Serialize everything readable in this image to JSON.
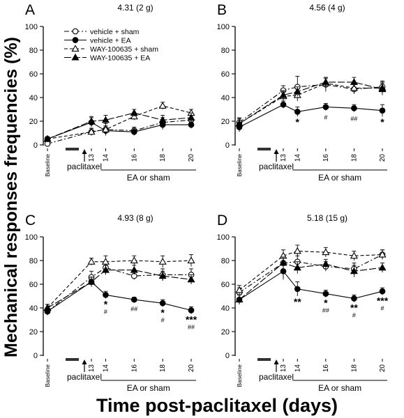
{
  "figure": {
    "ylabel": "Mechanical responses frequencies  (%)",
    "xlabel": "Time post-paclitaxel (days)"
  },
  "legend": {
    "location": "panel A, top-center",
    "entries": [
      {
        "label": "vehicle + sham",
        "marker": "open-circle",
        "dash": "dash-dot"
      },
      {
        "label": "vehicle + EA",
        "marker": "filled-circle",
        "dash": "solid"
      },
      {
        "label": "WAY-100635 + sham",
        "marker": "open-triangle",
        "dash": "dashed"
      },
      {
        "label": "WAY-100635 + EA",
        "marker": "filled-triangle",
        "dash": "long-dash"
      }
    ]
  },
  "chart_data": [
    {
      "type": "line",
      "panel": "A",
      "title": "4.31 (2 g)",
      "categories": [
        "Baseline",
        "13",
        "14",
        "16",
        "18",
        "20"
      ],
      "ylim": [
        0,
        100
      ],
      "yticks": [
        0,
        20,
        40,
        60,
        80,
        100
      ],
      "paclitaxel_label": "paclitaxel",
      "ea_label": "EA or sham",
      "series": [
        {
          "name": "vehicle + sham",
          "values": [
            1,
            11,
            13,
            12,
            19,
            21
          ],
          "err": [
            2,
            3,
            5,
            3,
            4,
            4
          ]
        },
        {
          "name": "vehicle + EA",
          "values": [
            5,
            19,
            12,
            11,
            17,
            17
          ],
          "err": [
            2,
            4,
            4,
            3,
            4,
            3
          ]
        },
        {
          "name": "WAY-100635 + sham",
          "values": [
            5,
            11,
            13,
            24,
            33,
            27
          ],
          "err": [
            2,
            3,
            3,
            3,
            3,
            3
          ]
        },
        {
          "name": "WAY-100635 + EA",
          "values": [
            5,
            20,
            21,
            27,
            21,
            23
          ],
          "err": [
            2,
            4,
            4,
            3,
            4,
            4
          ]
        }
      ],
      "annotations": []
    },
    {
      "type": "line",
      "panel": "B",
      "title": "4.56 (4 g)",
      "categories": [
        "Baseline",
        "13",
        "14",
        "16",
        "18",
        "20"
      ],
      "ylim": [
        0,
        100
      ],
      "yticks": [
        0,
        20,
        40,
        60,
        80,
        100
      ],
      "paclitaxel_label": "paclitaxel",
      "ea_label": "EA or sham",
      "series": [
        {
          "name": "vehicle + sham",
          "values": [
            19,
            46,
            49,
            51,
            47,
            49
          ],
          "err": [
            4,
            4,
            9,
            6,
            4,
            5
          ]
        },
        {
          "name": "vehicle + EA",
          "values": [
            15,
            34,
            28,
            32,
            31,
            29
          ],
          "err": [
            4,
            3,
            4,
            3,
            3,
            5
          ]
        },
        {
          "name": "WAY-100635 + sham",
          "values": [
            18,
            41,
            42,
            52,
            48,
            48
          ],
          "err": [
            4,
            4,
            5,
            4,
            4,
            5
          ]
        },
        {
          "name": "WAY-100635 + EA",
          "values": [
            18,
            42,
            45,
            53,
            53,
            47
          ],
          "err": [
            4,
            4,
            4,
            4,
            4,
            5
          ]
        }
      ],
      "annotations": [
        {
          "category": "14",
          "rows": [
            "*"
          ]
        },
        {
          "category": "16",
          "rows": [
            "#"
          ]
        },
        {
          "category": "18",
          "rows": [
            "##"
          ]
        },
        {
          "category": "20",
          "rows": [
            "*"
          ]
        }
      ]
    },
    {
      "type": "line",
      "panel": "C",
      "title": "4.93 (8 g)",
      "categories": [
        "Baseline",
        "13",
        "14",
        "16",
        "18",
        "20"
      ],
      "ylim": [
        0,
        100
      ],
      "yticks": [
        0,
        20,
        40,
        60,
        80,
        100
      ],
      "paclitaxel_label": "paclitaxel",
      "ea_label": "EA or sham",
      "series": [
        {
          "name": "vehicle + sham",
          "values": [
            37,
            66,
            74,
            67,
            68,
            68
          ],
          "err": [
            3,
            5,
            5,
            3,
            5,
            5
          ]
        },
        {
          "name": "vehicle + EA",
          "values": [
            37,
            62,
            51,
            47,
            44,
            38
          ],
          "err": [
            3,
            4,
            3,
            2,
            3,
            3
          ]
        },
        {
          "name": "WAY-100635 + sham",
          "values": [
            40,
            79,
            79,
            80,
            79,
            80
          ],
          "err": [
            3,
            3,
            5,
            4,
            5,
            5
          ]
        },
        {
          "name": "WAY-100635 + EA",
          "values": [
            40,
            62,
            72,
            72,
            67,
            64
          ],
          "err": [
            3,
            4,
            4,
            4,
            4,
            4
          ]
        }
      ],
      "annotations": [
        {
          "category": "14",
          "rows": [
            "*",
            "#"
          ]
        },
        {
          "category": "16",
          "rows": [
            "##"
          ]
        },
        {
          "category": "18",
          "rows": [
            "*",
            "#"
          ]
        },
        {
          "category": "20",
          "rows": [
            "***",
            "##"
          ]
        }
      ]
    },
    {
      "type": "line",
      "panel": "D",
      "title": "5.18 (15 g)",
      "categories": [
        "Baseline",
        "13",
        "14",
        "16",
        "18",
        "20"
      ],
      "ylim": [
        0,
        100
      ],
      "yticks": [
        0,
        20,
        40,
        60,
        80,
        100
      ],
      "paclitaxel_label": "paclitaxel",
      "ea_label": "EA or sham",
      "series": [
        {
          "name": "vehicle + sham",
          "values": [
            53,
            78,
            79,
            75,
            73,
            85
          ],
          "err": [
            4,
            5,
            5,
            4,
            5,
            4
          ]
        },
        {
          "name": "vehicle + EA",
          "values": [
            47,
            71,
            56,
            52,
            48,
            54
          ],
          "err": [
            4,
            7,
            6,
            3,
            3,
            3
          ]
        },
        {
          "name": "WAY-100635 + sham",
          "values": [
            55,
            84,
            88,
            87,
            84,
            85
          ],
          "err": [
            4,
            5,
            5,
            4,
            4,
            4
          ]
        },
        {
          "name": "WAY-100635 + EA",
          "values": [
            47,
            78,
            74,
            77,
            71,
            74
          ],
          "err": [
            4,
            5,
            5,
            4,
            5,
            4
          ]
        }
      ],
      "annotations": [
        {
          "category": "14",
          "rows": [
            "**"
          ]
        },
        {
          "category": "16",
          "rows": [
            "*",
            "##"
          ]
        },
        {
          "category": "18",
          "rows": [
            "**",
            "#"
          ]
        },
        {
          "category": "20",
          "rows": [
            "***",
            "#"
          ]
        }
      ]
    }
  ]
}
